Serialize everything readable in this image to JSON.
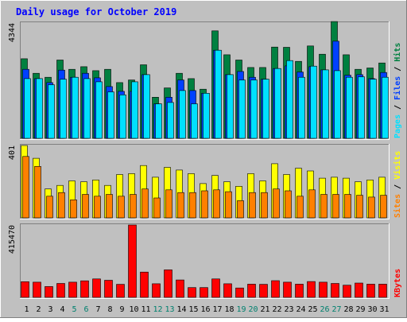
{
  "title": "Daily usage for October 2019",
  "colors": {
    "background": "#c0c0c0",
    "title": "#0000ff",
    "hits": "#008040",
    "files": "#0040ff",
    "pages": "#00e0ff",
    "visits": "#ffff00",
    "sites": "#ff8000",
    "kbytes": "#ff0000",
    "weekend_day": "#00806e",
    "weekday": "#000000"
  },
  "chart_data": [
    {
      "type": "bar",
      "panel": "hits-files-pages",
      "ymax_label": "4344",
      "ylim": [
        0,
        4344
      ],
      "legend": [
        {
          "label": "Hits",
          "color": "#008040"
        },
        {
          "label": "Files",
          "color": "#0040ff"
        },
        {
          "label": "Pages",
          "color": "#00e0ff"
        }
      ],
      "categories": [
        "1",
        "2",
        "3",
        "4",
        "5",
        "6",
        "7",
        "8",
        "9",
        "10",
        "11",
        "12",
        "13",
        "14",
        "15",
        "16",
        "17",
        "18",
        "19",
        "20",
        "21",
        "22",
        "23",
        "24",
        "25",
        "26",
        "27",
        "28",
        "29",
        "30",
        "31"
      ],
      "series": [
        {
          "name": "Hits",
          "values": [
            3000,
            2450,
            2300,
            2950,
            2600,
            2700,
            2550,
            2600,
            2100,
            2200,
            2770,
            1550,
            1900,
            2450,
            2250,
            1850,
            4050,
            3150,
            2950,
            2670,
            2670,
            3440,
            3430,
            2900,
            3480,
            3170,
            4400,
            3150,
            2600,
            2650,
            2840
          ]
        },
        {
          "name": "Files",
          "values": [
            2600,
            2250,
            2100,
            2570,
            2300,
            2450,
            2280,
            1950,
            1770,
            1770,
            2400,
            1300,
            1550,
            2200,
            1800,
            1700,
            3320,
            2400,
            2520,
            2300,
            2230,
            2630,
            2730,
            2500,
            2700,
            2580,
            3660,
            2380,
            2400,
            2250,
            2480
          ]
        },
        {
          "name": "Pages",
          "values": [
            2250,
            2250,
            2020,
            2230,
            2300,
            2250,
            2130,
            1750,
            1640,
            2130,
            2400,
            1300,
            1350,
            1800,
            1300,
            1700,
            3320,
            2400,
            2200,
            2200,
            2230,
            2630,
            2930,
            2300,
            2720,
            2580,
            2550,
            2300,
            2320,
            2230,
            2300
          ]
        }
      ]
    },
    {
      "type": "bar",
      "panel": "visits-sites",
      "ymax_label": "401",
      "ylim": [
        0,
        401
      ],
      "legend": [
        {
          "label": "Visits",
          "color": "#ffff00"
        },
        {
          "label": "Sites",
          "color": "#ff8000"
        }
      ],
      "categories": [
        "1",
        "2",
        "3",
        "4",
        "5",
        "6",
        "7",
        "8",
        "9",
        "10",
        "11",
        "12",
        "13",
        "14",
        "15",
        "16",
        "17",
        "18",
        "19",
        "20",
        "21",
        "22",
        "23",
        "24",
        "25",
        "26",
        "27",
        "28",
        "29",
        "30",
        "31"
      ],
      "series": [
        {
          "name": "Visits",
          "values": [
            401,
            330,
            160,
            180,
            205,
            200,
            210,
            180,
            240,
            245,
            290,
            225,
            280,
            265,
            245,
            190,
            235,
            200,
            175,
            245,
            205,
            300,
            240,
            275,
            260,
            220,
            225,
            220,
            200,
            210,
            225
          ]
        },
        {
          "name": "Sites",
          "values": [
            340,
            285,
            120,
            140,
            100,
            130,
            120,
            130,
            120,
            130,
            160,
            110,
            155,
            140,
            140,
            150,
            155,
            145,
            95,
            140,
            140,
            160,
            150,
            120,
            155,
            130,
            130,
            130,
            125,
            115,
            125
          ]
        }
      ]
    },
    {
      "type": "bar",
      "panel": "kbytes",
      "ymax_label": "415470",
      "ylim": [
        0,
        415470
      ],
      "legend": [
        {
          "label": "KBytes",
          "color": "#ff0000"
        }
      ],
      "categories": [
        "1",
        "2",
        "3",
        "4",
        "5",
        "6",
        "7",
        "8",
        "9",
        "10",
        "11",
        "12",
        "13",
        "14",
        "15",
        "16",
        "17",
        "18",
        "19",
        "20",
        "21",
        "22",
        "23",
        "24",
        "25",
        "26",
        "27",
        "28",
        "29",
        "30",
        "31"
      ],
      "series": [
        {
          "name": "KBytes",
          "values": [
            90000,
            87000,
            62000,
            80000,
            87000,
            95000,
            106000,
            98000,
            75000,
            415470,
            145000,
            78000,
            158000,
            100000,
            56000,
            56000,
            106000,
            78000,
            54000,
            76000,
            75000,
            96000,
            87000,
            76000,
            91000,
            87000,
            80000,
            70000,
            82000,
            76000,
            76000
          ]
        }
      ]
    }
  ],
  "weekend_days": [
    "5",
    "6",
    "12",
    "13",
    "19",
    "20",
    "26",
    "27"
  ]
}
